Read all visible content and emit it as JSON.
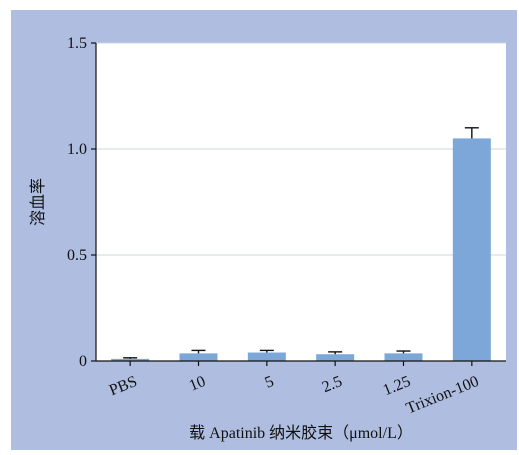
{
  "chart_data": {
    "type": "bar",
    "categories": [
      "PBS",
      "10",
      "5",
      "2.5",
      "1.25",
      "Trixion-100"
    ],
    "values": [
      0.01,
      0.036,
      0.04,
      0.032,
      0.036,
      1.05
    ],
    "errors": [
      0.005,
      0.014,
      0.01,
      0.011,
      0.011,
      0.05
    ],
    "title": "",
    "xlabel": "载 Apatinib 纳米胶束（μmol/L）",
    "ylabel": "溶血率",
    "ylim": [
      0,
      1.5
    ],
    "yticks": [
      "0",
      "0.5",
      "1.0",
      "1.5"
    ],
    "grid": true,
    "colors": {
      "bar": "#7da7d9",
      "background": "#aebde0",
      "plot": "#ffffff",
      "grid": "#cfd5df"
    }
  }
}
